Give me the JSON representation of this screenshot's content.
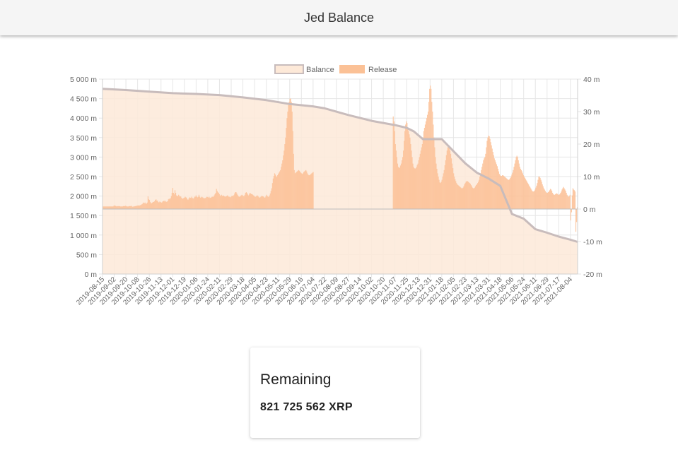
{
  "app": {
    "title": "Jed Balance"
  },
  "card": {
    "title": "Remaining",
    "value": "821 725 562 XRP"
  },
  "colors": {
    "balance_fill": "#fde9d8",
    "balance_line": "#c8bcbc",
    "release_fill": "#fbc196",
    "grid": "#e6e6e6",
    "zero_line": "#bdbdbd",
    "tick_text": "#666666"
  },
  "chart_data": {
    "type": "bar",
    "legend": {
      "position": "top",
      "entries": [
        "Balance",
        "Release"
      ]
    },
    "grid": true,
    "y_left": {
      "label": "",
      "range": [
        0,
        5000
      ],
      "ticks": [
        "0 m",
        "500 m",
        "1 000 m",
        "1 500 m",
        "2 000 m",
        "2 500 m",
        "3 000 m",
        "3 500 m",
        "4 000 m",
        "4 500 m",
        "5 000 m"
      ]
    },
    "y_right": {
      "label": "",
      "range": [
        -20,
        40
      ],
      "ticks": [
        "-20 m",
        "-10 m",
        "0 m",
        "10 m",
        "20 m",
        "30 m",
        "40 m"
      ]
    },
    "x_ticks": [
      "2019-08-15",
      "2019-09-02",
      "2019-09-20",
      "2019-10-08",
      "2019-10-26",
      "2019-11-13",
      "2019-12-01",
      "2019-12-19",
      "2020-01-06",
      "2020-01-24",
      "2020-02-11",
      "2020-02-29",
      "2020-03-18",
      "2020-04-05",
      "2020-04-23",
      "2020-05-11",
      "2020-05-29",
      "2020-06-16",
      "2020-07-04",
      "2020-07-22",
      "2020-08-09",
      "2020-08-27",
      "2020-09-14",
      "2020-10-02",
      "2020-10-20",
      "2020-11-07",
      "2020-11-25",
      "2020-12-13",
      "2020-12-31",
      "2021-01-18",
      "2021-02-05",
      "2021-02-23",
      "2021-03-13",
      "2021-03-31",
      "2021-04-18",
      "2021-05-06",
      "2021-05-24",
      "2021-06-11",
      "2021-06-29",
      "2021-07-17",
      "2021-08-04"
    ],
    "series": [
      {
        "name": "Balance",
        "type": "area",
        "axis": "left",
        "x": [
          "2019-08-15",
          "2019-09-20",
          "2019-10-26",
          "2019-12-01",
          "2020-01-06",
          "2020-02-11",
          "2020-03-18",
          "2020-04-23",
          "2020-05-29",
          "2020-07-04",
          "2020-07-22",
          "2020-08-27",
          "2020-10-02",
          "2020-11-07",
          "2020-11-25",
          "2020-12-06",
          "2020-12-20",
          "2021-01-04",
          "2021-01-18",
          "2021-02-05",
          "2021-02-23",
          "2021-03-13",
          "2021-03-31",
          "2021-04-18",
          "2021-05-06",
          "2021-05-24",
          "2021-06-11",
          "2021-06-29",
          "2021-07-17",
          "2021-08-04",
          "2021-08-15"
        ],
        "values": [
          4750,
          4720,
          4680,
          4640,
          4620,
          4590,
          4530,
          4460,
          4360,
          4300,
          4250,
          4080,
          3930,
          3820,
          3750,
          3660,
          3460,
          3460,
          3460,
          3150,
          2840,
          2600,
          2450,
          2260,
          1540,
          1420,
          1150,
          1060,
          960,
          880,
          825
        ]
      },
      {
        "name": "Release",
        "type": "bar",
        "axis": "right",
        "x_start": "2019-08-15",
        "x_end": "2021-08-15",
        "values": [
          0.8,
          0.8,
          0.8,
          0.8,
          0.8,
          0.8,
          0.8,
          0.8,
          0.8,
          0.8,
          0.8,
          0.8,
          0.8,
          0.8,
          0.8,
          1.0,
          1.1,
          1.0,
          0.9,
          0.8,
          0.9,
          0.9,
          0.9,
          0.9,
          0.8,
          0.8,
          0.8,
          0.8,
          0.9,
          0.9,
          0.9,
          1.0,
          0.9,
          0.8,
          0.8,
          0.8,
          0.9,
          0.9,
          0.9,
          1.0,
          0.8,
          0.7,
          0.8,
          0.8,
          0.9,
          0.9,
          1.0,
          1.0,
          1.1,
          1.1,
          1.0,
          1.2,
          1.2,
          1.4,
          1.5,
          1.8,
          2.0,
          1.8,
          2.0,
          1.6,
          1.7,
          2.0,
          3.9,
          3.0,
          2.8,
          2.2,
          1.8,
          1.8,
          2.0,
          2.2,
          2.2,
          2.4,
          2.8,
          3.0,
          2.6,
          2.6,
          2.2,
          2.0,
          2.3,
          2.2,
          2.0,
          2.0,
          2.3,
          2.4,
          2.6,
          2.3,
          2.5,
          2.2,
          2.3,
          2.4,
          3.0,
          3.2,
          3.0,
          3.4,
          4.0,
          5.0,
          6.5,
          5.0,
          4.5,
          5.8,
          5.0,
          4.2,
          4.0,
          4.0,
          4.4,
          4.1,
          3.8,
          3.9,
          3.5,
          3.2,
          3.2,
          3.4,
          3.5,
          3.8,
          3.6,
          3.5,
          3.0,
          2.8,
          3.2,
          3.6,
          3.5,
          3.4,
          3.8,
          3.4,
          3.2,
          3.4,
          3.8,
          3.8,
          4.2,
          3.8,
          3.6,
          3.8,
          4.4,
          3.8,
          3.5,
          3.6,
          3.8,
          3.6,
          3.5,
          3.2,
          3.4,
          3.4,
          3.6,
          3.8,
          3.7,
          3.5,
          3.8,
          3.4,
          3.5,
          3.6,
          3.8,
          3.8,
          3.8,
          4.2,
          4.6,
          5.0,
          6.2,
          5.6,
          5.2,
          5.0,
          4.6,
          4.2,
          4.0,
          4.4,
          4.0,
          4.2,
          4.1,
          3.9,
          3.8,
          3.9,
          4.0,
          4.2,
          4.0,
          3.8,
          3.8,
          3.6,
          3.8,
          4.0,
          4.1,
          4.0,
          4.3,
          4.8,
          5.2,
          5.2,
          4.8,
          4.4,
          4.0,
          3.8,
          3.8,
          4.0,
          4.2,
          4.4,
          4.2,
          4.0,
          4.0,
          4.4,
          5.0,
          5.2,
          5.0,
          4.5,
          4.2,
          4.5,
          5.0,
          4.8,
          4.6,
          4.6,
          4.4,
          4.2,
          4.0,
          3.8,
          3.8,
          4.0,
          4.2,
          4.0,
          3.8,
          3.5,
          3.6,
          3.8,
          4.0,
          4.0,
          3.9,
          3.8,
          3.5,
          3.6,
          4.0,
          4.4,
          4.0,
          3.8,
          3.8,
          4.2,
          4.8,
          5.6,
          6.4,
          8.0,
          9.4,
          10.2,
          11.0,
          10.6,
          10.2,
          9.8,
          10.4,
          10.8,
          11.2,
          11.6,
          12.0,
          13.0,
          14.0,
          15.0,
          16.5,
          18.0,
          20.0,
          22.0,
          25.0,
          28.0,
          30.0,
          32.0,
          33.0,
          34.0,
          34.0,
          33.0,
          30.0,
          24.0,
          17.0,
          12.0,
          11.0,
          11.2,
          11.4,
          11.6,
          11.8,
          12.0,
          11.8,
          11.5,
          11.2,
          11.0,
          10.8,
          11.0,
          11.4,
          11.6,
          11.8,
          12.0,
          11.6,
          11.0,
          10.6,
          10.4,
          10.4,
          10.6,
          10.8,
          11.0,
          11.2,
          11.4,
          0,
          0,
          0,
          0,
          0,
          0,
          0,
          0,
          0,
          0,
          0,
          0,
          0,
          0,
          0,
          0,
          0,
          0,
          0,
          0,
          0,
          0,
          0,
          0,
          0,
          0,
          0,
          0,
          0,
          0,
          0,
          0,
          0,
          0,
          0,
          0,
          0,
          0,
          0,
          0,
          0,
          0,
          0,
          0,
          0,
          0,
          0,
          0,
          0,
          0,
          0,
          0,
          0,
          0,
          0,
          0,
          0,
          0,
          0,
          0,
          0,
          0,
          0,
          0,
          0,
          0,
          0,
          0,
          0,
          0,
          0,
          0,
          0,
          0,
          0,
          0,
          0,
          0,
          0,
          0,
          0,
          0,
          0,
          0,
          0,
          0,
          0,
          0,
          0,
          0,
          0,
          0,
          0,
          0,
          0,
          0,
          0,
          0,
          0,
          0,
          0,
          0,
          0,
          0,
          0,
          0,
          0,
          0,
          0,
          28.5,
          27.0,
          24.0,
          20.0,
          18.0,
          16.0,
          14.0,
          13.0,
          12.6,
          12.8,
          13.4,
          14.0,
          15.0,
          16.0,
          18.0,
          21.0,
          24.0,
          26.0,
          27.0,
          26.5,
          25.0,
          24.0,
          23.0,
          22.0,
          20.0,
          18.0,
          16.0,
          14.0,
          13.0,
          12.6,
          12.4,
          12.6,
          13.0,
          13.6,
          14.0,
          15.0,
          16.0,
          17.0,
          18.0,
          19.0,
          20.0,
          22.0,
          24.0,
          25.0,
          26.0,
          27.0,
          28.0,
          29.0,
          30.0,
          33.0,
          37.0,
          38.0,
          37.0,
          33.0,
          30.0,
          26.0,
          22.0,
          19.0,
          16.0,
          14.0,
          12.4,
          11.0,
          10.0,
          9.0,
          8.2,
          8.0,
          8.4,
          9.0,
          10.0,
          11.0,
          12.0,
          13.5,
          15.0,
          16.6,
          18.0,
          19.0,
          19.5,
          19.0,
          18.0,
          17.0,
          15.6,
          14.0,
          12.6,
          11.0,
          10.0,
          9.2,
          8.6,
          8.0,
          7.6,
          7.4,
          7.2,
          7.0,
          6.8,
          6.6,
          6.4,
          6.4,
          6.6,
          7.0,
          7.6,
          8.0,
          8.4,
          8.6,
          8.6,
          8.4,
          8.2,
          8.0,
          7.8,
          7.4,
          7.0,
          6.6,
          6.4,
          6.4,
          6.6,
          7.0,
          7.4,
          7.6,
          8.0,
          8.4,
          9.0,
          10.0,
          11.0,
          12.0,
          13.0,
          14.0,
          15.0,
          15.6,
          16.0,
          17.0,
          19.0,
          21.0,
          22.0,
          22.6,
          22.4,
          21.6,
          20.6,
          19.6,
          18.6,
          17.6,
          16.6,
          15.6,
          15.0,
          14.4,
          13.8,
          13.2,
          12.4,
          11.6,
          10.8,
          10.4,
          10.2,
          10.2,
          10.4,
          10.4,
          10.2,
          10.0,
          9.8,
          9.6,
          9.4,
          9.2,
          9.0,
          9.0,
          9.2,
          9.6,
          10.0,
          10.6,
          11.2,
          12.0,
          13.0,
          14.0,
          15.0,
          16.0,
          16.4,
          16.0,
          15.0,
          14.0,
          13.0,
          12.4,
          12.0,
          11.6,
          11.0,
          10.4,
          10.0,
          9.6,
          9.2,
          8.8,
          8.4,
          8.0,
          7.6,
          7.2,
          6.8,
          6.4,
          6.0,
          5.6,
          5.4,
          5.4,
          5.6,
          6.0,
          6.6,
          7.2,
          8.0,
          9.0,
          10.0,
          10.0,
          9.6,
          9.0,
          8.4,
          7.6,
          7.0,
          6.4,
          6.0,
          5.6,
          5.2,
          5.0,
          5.0,
          5.2,
          5.4,
          5.8,
          6.2,
          6.0,
          5.6,
          5.0,
          4.6,
          4.4,
          4.4,
          4.6,
          4.8,
          4.8,
          4.6,
          4.4,
          4.4,
          4.6,
          5.0,
          5.4,
          6.0,
          6.4,
          6.8,
          6.4,
          6.0,
          5.6,
          5.0,
          4.4,
          4.0,
          3.8,
          4.0,
          4.4,
          -3.5,
          -1.0,
          4.2,
          6.4,
          6.0,
          5.8,
          5.4,
          -7.0,
          -4.0,
          0.6
        ]
      }
    ]
  }
}
